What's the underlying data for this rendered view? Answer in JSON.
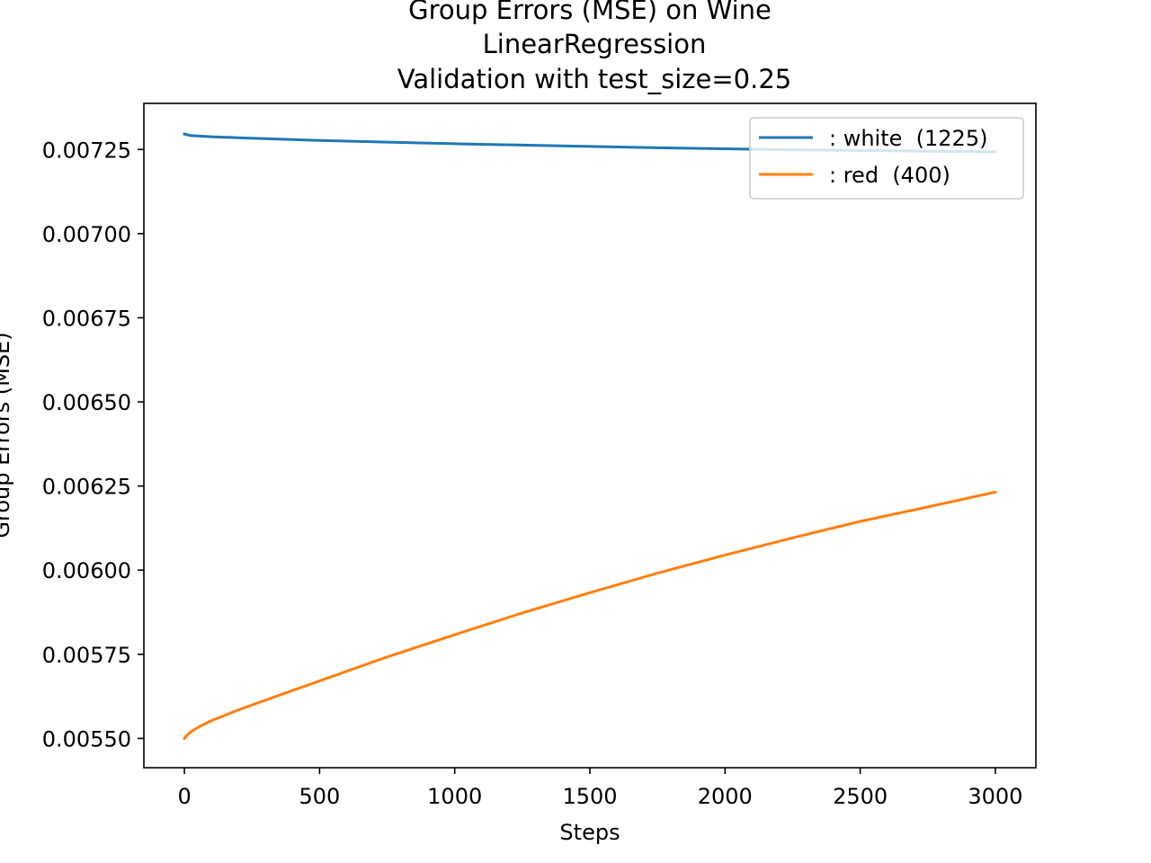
{
  "chart_data": {
    "type": "line",
    "title_lines": [
      "Group Errors (MSE) on Wine",
      "LinearRegression",
      "Validation with test_size=0.25"
    ],
    "xlabel": "Steps",
    "ylabel": "Group Errors (MSE)",
    "xlim": [
      -150,
      3150
    ],
    "ylim": [
      0.005413,
      0.007387
    ],
    "xticks": [
      0,
      500,
      1000,
      1500,
      2000,
      2500,
      3000
    ],
    "xtick_labels": [
      "0",
      "500",
      "1000",
      "1500",
      "2000",
      "2500",
      "3000"
    ],
    "yticks": [
      0.0055,
      0.00575,
      0.006,
      0.00625,
      0.0065,
      0.00675,
      0.007,
      0.00725
    ],
    "ytick_labels": [
      "0.00550",
      "0.00575",
      "0.00600",
      "0.00625",
      "0.00650",
      "0.00675",
      "0.00700",
      "0.00725"
    ],
    "grid": false,
    "legend_position": "top-right",
    "series": [
      {
        "name": ": white  (1225)",
        "color": "#1f77b4",
        "x": [
          0,
          25,
          50,
          100,
          200,
          300,
          500,
          750,
          1000,
          1250,
          1500,
          1750,
          2000,
          2250,
          2500,
          2750,
          3000
        ],
        "y": [
          0.007296,
          0.007291,
          0.00729,
          0.007288,
          0.007285,
          0.007282,
          0.007277,
          0.007272,
          0.007267,
          0.007263,
          0.007259,
          0.007255,
          0.007252,
          0.007249,
          0.007247,
          0.007245,
          0.007243
        ]
      },
      {
        "name": ": red  (400)",
        "color": "#ff7f0e",
        "x": [
          0,
          10,
          25,
          50,
          100,
          200,
          300,
          500,
          750,
          1000,
          1250,
          1500,
          1750,
          2000,
          2250,
          2500,
          2750,
          3000
        ],
        "y": [
          0.0055,
          0.00551,
          0.00552,
          0.005533,
          0.005553,
          0.005585,
          0.005614,
          0.005671,
          0.005742,
          0.005808,
          0.005873,
          0.005933,
          0.005991,
          0.006045,
          0.006096,
          0.006145,
          0.006188,
          0.006232
        ]
      }
    ]
  }
}
